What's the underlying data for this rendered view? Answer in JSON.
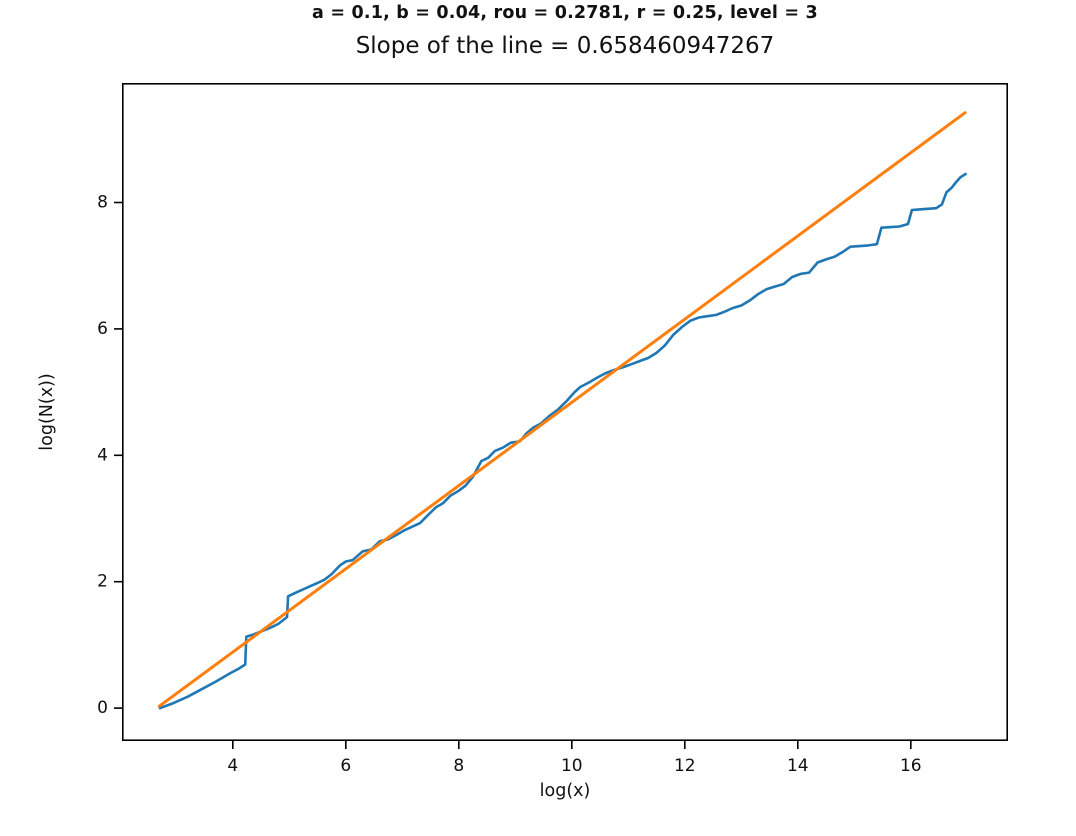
{
  "figure": {
    "suptitle": "a = 0.1, b = 0.04, rou = 0.2781, r = 0.25, level = 3",
    "title": "Slope of the line = 0.658460947267"
  },
  "chart_data": {
    "type": "line",
    "suptitle": "a = 0.1, b = 0.04, rou = 0.2781, r = 0.25, level = 3",
    "title": "Slope of the line = 0.658460947267",
    "slope_shown": "0.658460947267",
    "xlabel": "log(x)",
    "ylabel": "log(N(x))",
    "xlim": [
      2.04,
      17.72
    ],
    "ylim": [
      -0.52,
      9.89
    ],
    "x_ticks": [
      4,
      6,
      8,
      10,
      12,
      14,
      16
    ],
    "y_ticks": [
      0,
      2,
      4,
      6,
      8
    ],
    "grid": false,
    "legend_position": "none",
    "background_color": "#ffffff",
    "frame_color": "#000000",
    "series": [
      {
        "name": "empirical-step-curve",
        "color": "#1f77b4",
        "line_width": 2.6,
        "points": [
          [
            2.71,
            0.0
          ],
          [
            2.95,
            0.08
          ],
          [
            3.2,
            0.18
          ],
          [
            3.45,
            0.3
          ],
          [
            3.7,
            0.42
          ],
          [
            3.95,
            0.55
          ],
          [
            4.1,
            0.62
          ],
          [
            4.22,
            0.69
          ],
          [
            4.24,
            1.13
          ],
          [
            4.38,
            1.17
          ],
          [
            4.52,
            1.22
          ],
          [
            4.66,
            1.27
          ],
          [
            4.8,
            1.33
          ],
          [
            4.96,
            1.44
          ],
          [
            4.98,
            1.77
          ],
          [
            5.1,
            1.82
          ],
          [
            5.3,
            1.9
          ],
          [
            5.5,
            1.98
          ],
          [
            5.62,
            2.03
          ],
          [
            5.75,
            2.12
          ],
          [
            5.9,
            2.26
          ],
          [
            6.0,
            2.32
          ],
          [
            6.12,
            2.34
          ],
          [
            6.3,
            2.48
          ],
          [
            6.45,
            2.51
          ],
          [
            6.6,
            2.64
          ],
          [
            6.75,
            2.67
          ],
          [
            6.9,
            2.74
          ],
          [
            7.05,
            2.82
          ],
          [
            7.2,
            2.88
          ],
          [
            7.32,
            2.93
          ],
          [
            7.45,
            3.05
          ],
          [
            7.6,
            3.18
          ],
          [
            7.72,
            3.24
          ],
          [
            7.85,
            3.36
          ],
          [
            8.0,
            3.44
          ],
          [
            8.12,
            3.52
          ],
          [
            8.25,
            3.66
          ],
          [
            8.4,
            3.91
          ],
          [
            8.52,
            3.96
          ],
          [
            8.64,
            4.07
          ],
          [
            8.78,
            4.12
          ],
          [
            8.92,
            4.2
          ],
          [
            9.08,
            4.22
          ],
          [
            9.2,
            4.35
          ],
          [
            9.32,
            4.44
          ],
          [
            9.45,
            4.5
          ],
          [
            9.6,
            4.62
          ],
          [
            9.75,
            4.72
          ],
          [
            9.9,
            4.85
          ],
          [
            10.05,
            5.0
          ],
          [
            10.15,
            5.08
          ],
          [
            10.3,
            5.15
          ],
          [
            10.45,
            5.23
          ],
          [
            10.6,
            5.3
          ],
          [
            10.75,
            5.35
          ],
          [
            10.9,
            5.39
          ],
          [
            11.05,
            5.44
          ],
          [
            11.2,
            5.49
          ],
          [
            11.35,
            5.54
          ],
          [
            11.5,
            5.62
          ],
          [
            11.65,
            5.74
          ],
          [
            11.8,
            5.91
          ],
          [
            11.95,
            6.03
          ],
          [
            12.1,
            6.13
          ],
          [
            12.25,
            6.18
          ],
          [
            12.4,
            6.2
          ],
          [
            12.55,
            6.22
          ],
          [
            12.7,
            6.27
          ],
          [
            12.85,
            6.33
          ],
          [
            13.0,
            6.37
          ],
          [
            13.15,
            6.45
          ],
          [
            13.3,
            6.55
          ],
          [
            13.45,
            6.63
          ],
          [
            13.6,
            6.67
          ],
          [
            13.75,
            6.71
          ],
          [
            13.9,
            6.82
          ],
          [
            14.05,
            6.87
          ],
          [
            14.2,
            6.89
          ],
          [
            14.35,
            7.05
          ],
          [
            14.5,
            7.1
          ],
          [
            14.65,
            7.14
          ],
          [
            14.8,
            7.22
          ],
          [
            14.93,
            7.3
          ],
          [
            15.1,
            7.31
          ],
          [
            15.25,
            7.32
          ],
          [
            15.4,
            7.34
          ],
          [
            15.48,
            7.6
          ],
          [
            15.65,
            7.61
          ],
          [
            15.8,
            7.62
          ],
          [
            15.95,
            7.66
          ],
          [
            16.02,
            7.88
          ],
          [
            16.15,
            7.89
          ],
          [
            16.3,
            7.9
          ],
          [
            16.45,
            7.91
          ],
          [
            16.55,
            7.97
          ],
          [
            16.63,
            8.16
          ],
          [
            16.72,
            8.23
          ],
          [
            16.8,
            8.32
          ],
          [
            16.88,
            8.4
          ],
          [
            16.97,
            8.45
          ]
        ]
      },
      {
        "name": "fitted-line",
        "color": "#ff7f0e",
        "line_width": 3,
        "points": [
          [
            2.7,
            0.03
          ],
          [
            16.96,
            9.42
          ]
        ]
      }
    ]
  }
}
